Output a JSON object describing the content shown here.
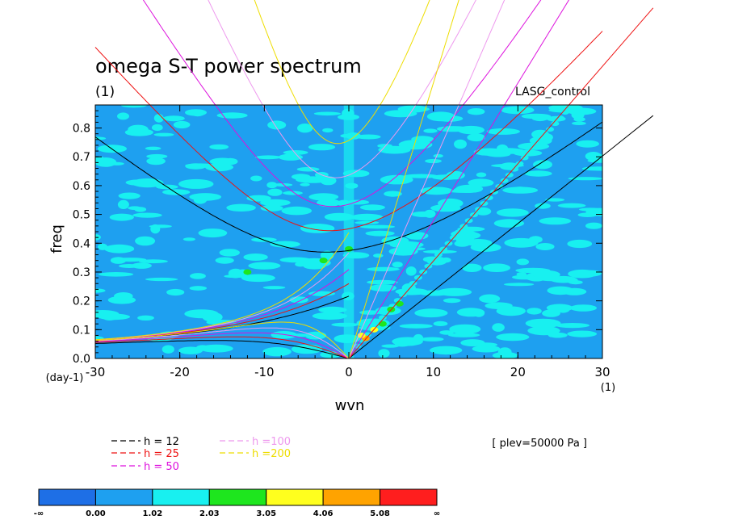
{
  "chart_data": {
    "type": "heatmap",
    "title": "omega S-T power spectrum",
    "title_unit": "(1)",
    "case_label": "LASG_control",
    "xlabel": "wvn",
    "xunit": "(1)",
    "ylabel": "freq",
    "yunit": "(day-1)",
    "xlim": [
      -30,
      30
    ],
    "ylim": [
      0,
      0.88
    ],
    "xticks": [
      "-30",
      "-20",
      "-10",
      "0",
      "10",
      "20",
      "30"
    ],
    "yticks": [
      "0.0",
      "0.1",
      "0.2",
      "0.3",
      "0.4",
      "0.5",
      "0.6",
      "0.7",
      "0.8"
    ],
    "level_note": "[ plev=50000 Pa ]",
    "colorbar": {
      "labels": [
        "-∞",
        "0.00",
        "1.02",
        "2.03",
        "3.05",
        "4.06",
        "5.08",
        "∞"
      ],
      "colors": [
        "#1e6fe6",
        "#1ea0f0",
        "#18f0f0",
        "#1ee61e",
        "#ffff1e",
        "#ffa300",
        "#ff1e1e"
      ]
    },
    "dispersion_curves": [
      {
        "name": "h = 12",
        "h": 12,
        "color": "#000000"
      },
      {
        "name": "h = 25",
        "h": 25,
        "color": "#ee1111"
      },
      {
        "name": "h = 50",
        "h": 50,
        "color": "#dd11dd"
      },
      {
        "name": "h =100",
        "h": 100,
        "color": "#ee99ee"
      },
      {
        "name": "h =200",
        "h": 200,
        "color": "#eedd00"
      }
    ],
    "hotspots": [
      {
        "x": 2.0,
        "y": 0.07,
        "level": 5
      },
      {
        "x": 3.0,
        "y": 0.1,
        "level": 4
      },
      {
        "x": 4.0,
        "y": 0.12,
        "level": 3
      },
      {
        "x": 5.0,
        "y": 0.17,
        "level": 3
      },
      {
        "x": 6.0,
        "y": 0.19,
        "level": 3
      },
      {
        "x": 1.5,
        "y": 0.08,
        "level": 4
      },
      {
        "x": -3.0,
        "y": 0.34,
        "level": 3
      },
      {
        "x": 0.0,
        "y": 0.38,
        "level": 3
      },
      {
        "x": -12.0,
        "y": 0.3,
        "level": 3
      }
    ]
  }
}
